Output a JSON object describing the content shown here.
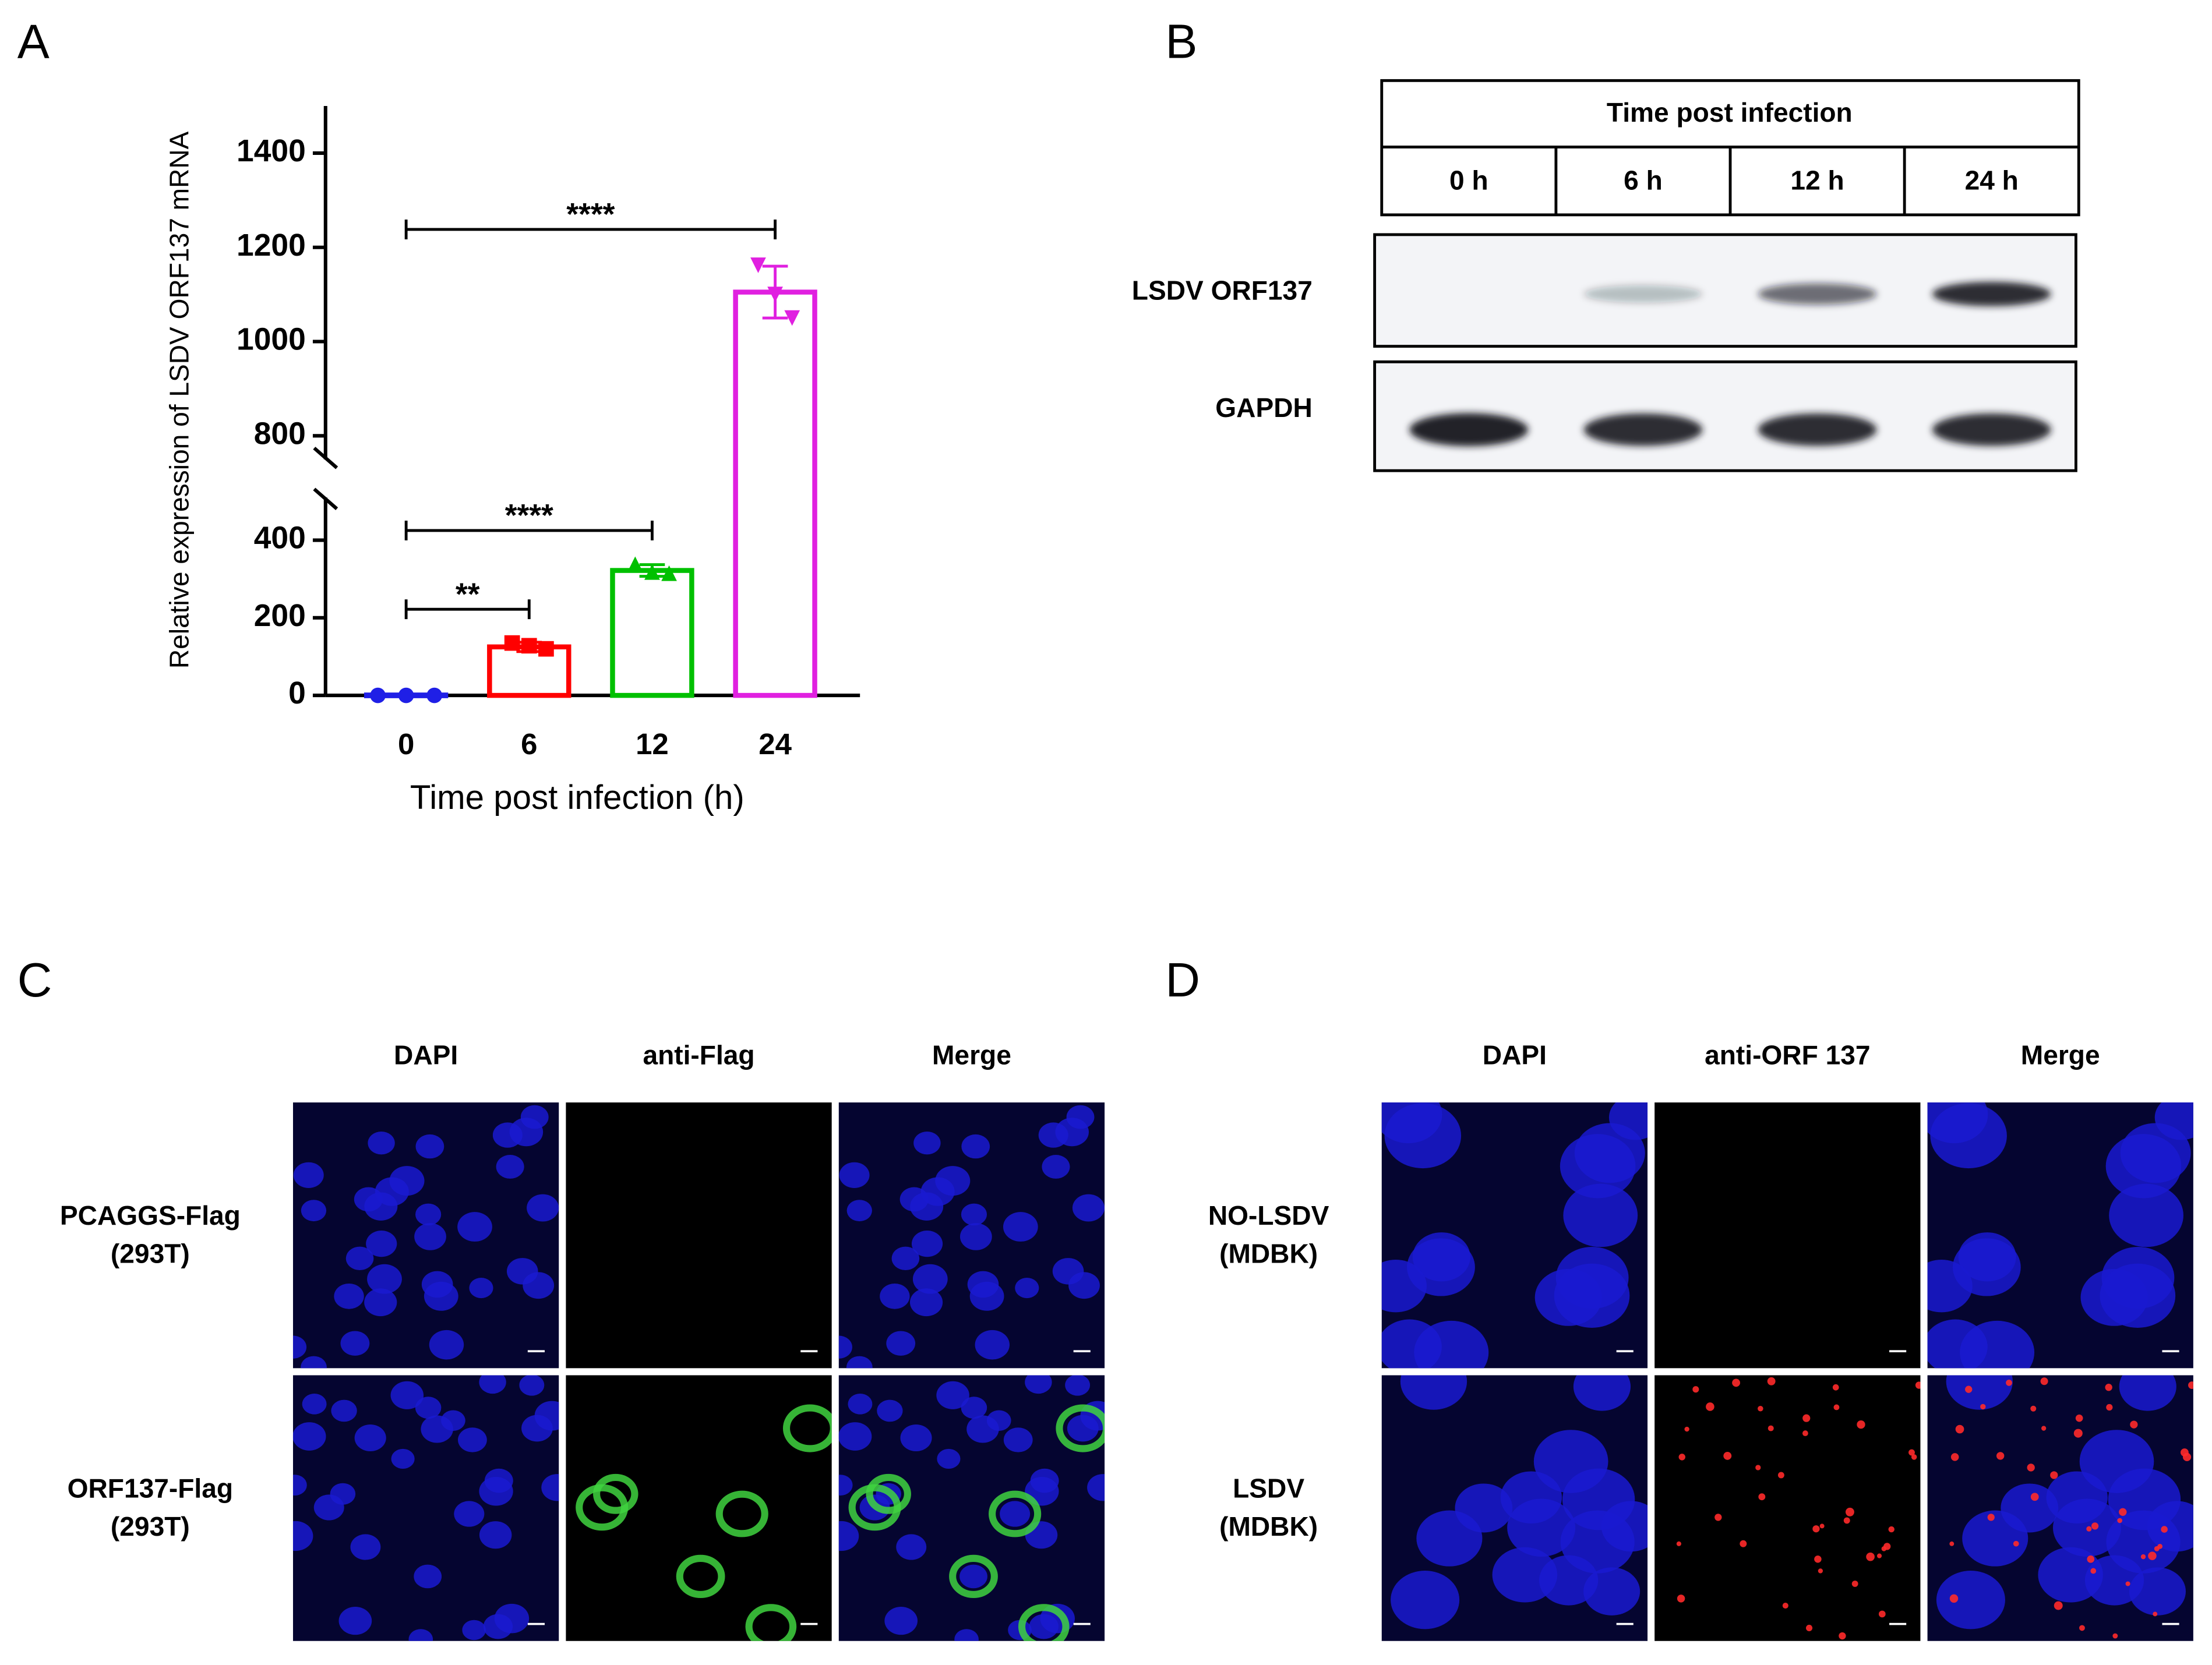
{
  "panel_labels": [
    "A",
    "B",
    "C",
    "D"
  ],
  "chart_data": {
    "type": "bar",
    "y_label": "Relative expression of LSDV ORF137 mRNA",
    "x_label": "Time post infection (h)",
    "categories": [
      "0",
      "6",
      "12",
      "24"
    ],
    "values": [
      1,
      125,
      322,
      1105
    ],
    "errors": [
      0.5,
      12,
      15,
      55
    ],
    "points": [
      [
        0,
        0,
        0
      ],
      [
        135,
        128,
        120
      ],
      [
        338,
        318,
        315
      ],
      [
        1162,
        1100,
        1050
      ]
    ],
    "colors": [
      "#1f1fe6",
      "#ff0000",
      "#00c000",
      "#e020e0"
    ],
    "markers": [
      "circle",
      "square",
      "triangle",
      "triangle-down"
    ],
    "ylim": [
      0,
      1500
    ],
    "ybreak": [
      510,
      750
    ],
    "yticks": [
      0,
      200,
      400,
      800,
      1000,
      1200,
      1400
    ],
    "annotations": [
      {
        "text": "**",
        "from": 0,
        "to": 1,
        "y": 222
      },
      {
        "text": "****",
        "from": 0,
        "to": 2,
        "y": 425
      },
      {
        "text": "****",
        "from": 0,
        "to": 3,
        "y": 1238
      }
    ]
  },
  "western_blot": {
    "header": "Time post infection",
    "lanes": [
      "0 h",
      "6 h",
      "12 h",
      "24 h"
    ],
    "rows": [
      "LSDV ORF137",
      "GAPDH"
    ]
  },
  "panel_c": {
    "columns": [
      "DAPI",
      "anti-Flag",
      "Merge"
    ],
    "rows": [
      [
        "PCAGGS-Flag",
        "(293T)"
      ],
      [
        "ORF137-Flag",
        "(293T)"
      ]
    ]
  },
  "panel_d": {
    "columns": [
      "DAPI",
      "anti-ORF 137",
      "Merge"
    ],
    "rows": [
      [
        "NO-LSDV",
        "(MDBK)"
      ],
      [
        "LSDV",
        "(MDBK)"
      ]
    ]
  }
}
